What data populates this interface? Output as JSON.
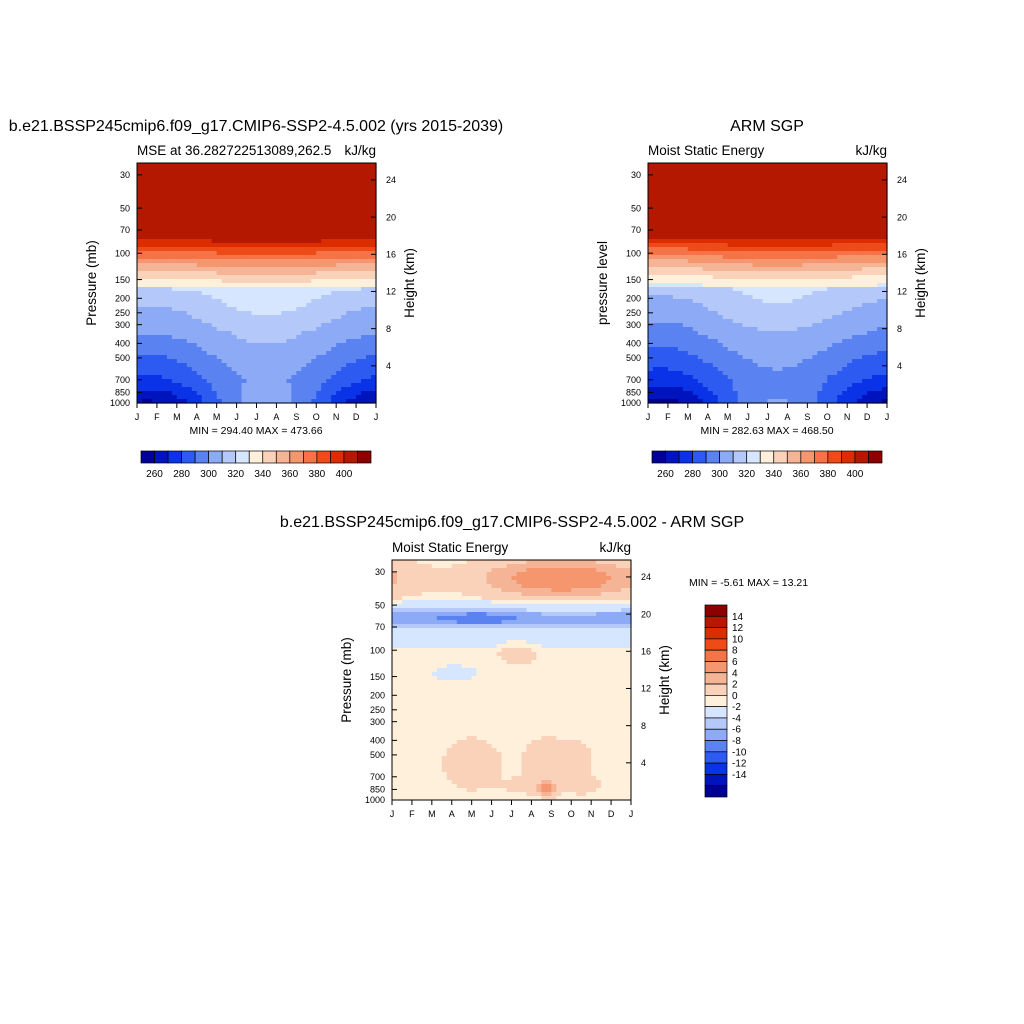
{
  "colors": {
    "mse_levels": [
      "#000096",
      "#0014be",
      "#0a32e6",
      "#2d5af0",
      "#5a82f0",
      "#8caaf5",
      "#b4c8fa",
      "#d7e6ff",
      "#fff0dc",
      "#fad2b9",
      "#f5b496",
      "#f5966e",
      "#f57346",
      "#ee4b19",
      "#dc2d00",
      "#b41900",
      "#8c0000"
    ],
    "diff_levels": [
      "#000096",
      "#0014be",
      "#0a32e6",
      "#2d5af0",
      "#5a82f0",
      "#8caaf5",
      "#b4c8fa",
      "#d7e6ff",
      "#fff0dc",
      "#fad2b9",
      "#f5b496",
      "#f5966e",
      "#f57346",
      "#ee4b19",
      "#dc2d00",
      "#b41900",
      "#8c0000"
    ]
  },
  "chart_data": [
    {
      "type": "heatmap",
      "title": "b.e21.BSSP245cmip6.f09_g17.CMIP6-SSP2-4.5.002 (yrs 2015-2039)",
      "left_subtitle": "MSE at 36.282722513089,262.5",
      "right_subtitle": "kJ/kg",
      "ylabel": "Pressure (mb)",
      "y2label": "Height (km)",
      "x_ticks": [
        "J",
        "F",
        "M",
        "A",
        "M",
        "J",
        "J",
        "A",
        "S",
        "O",
        "N",
        "D",
        "J"
      ],
      "y_ticks": [
        30,
        50,
        70,
        100,
        150,
        200,
        250,
        300,
        400,
        500,
        700,
        850,
        1000
      ],
      "y2_ticks": [
        24,
        20,
        16,
        12,
        8,
        4
      ],
      "stats": "MIN = 294.40 MAX = 473.66",
      "colorbar_levels": [
        255,
        265,
        275,
        285,
        295,
        305,
        315,
        325,
        335,
        345,
        355,
        365,
        375,
        385,
        395,
        405
      ],
      "colorbar_labels": [
        260,
        280,
        300,
        320,
        340,
        360,
        380,
        400
      ]
    },
    {
      "type": "heatmap",
      "title": "ARM SGP",
      "left_subtitle": "Moist Static Energy",
      "right_subtitle": "kJ/kg",
      "ylabel": "pressure level",
      "y2label": "Height (km)",
      "x_ticks": [
        "J",
        "F",
        "M",
        "A",
        "M",
        "J",
        "J",
        "A",
        "S",
        "O",
        "N",
        "D",
        "J"
      ],
      "y_ticks": [
        30,
        50,
        70,
        100,
        150,
        200,
        250,
        300,
        400,
        500,
        700,
        850,
        1000
      ],
      "y2_ticks": [
        24,
        20,
        16,
        12,
        8,
        4
      ],
      "stats": "MIN = 282.63 MAX = 468.50",
      "colorbar_levels": [
        255,
        265,
        275,
        285,
        295,
        305,
        315,
        325,
        335,
        345,
        355,
        365,
        375,
        385,
        395,
        405
      ],
      "colorbar_labels": [
        260,
        280,
        300,
        320,
        340,
        360,
        380,
        400
      ]
    },
    {
      "type": "heatmap",
      "title": "b.e21.BSSP245cmip6.f09_g17.CMIP6-SSP2-4.5.002 - ARM SGP",
      "left_subtitle": "Moist Static Energy",
      "right_subtitle": "kJ/kg",
      "ylabel": "Pressure (mb)",
      "y2label": "Height (km)",
      "x_ticks": [
        "J",
        "F",
        "M",
        "A",
        "M",
        "J",
        "J",
        "A",
        "S",
        "O",
        "N",
        "D",
        "J"
      ],
      "y_ticks": [
        30,
        50,
        70,
        100,
        150,
        200,
        250,
        300,
        400,
        500,
        700,
        850,
        1000
      ],
      "y2_ticks": [
        24,
        20,
        16,
        12,
        8,
        4
      ],
      "stats": "MIN =  -5.61 MAX =  13.21",
      "colorbar_levels": [
        -16,
        -14,
        -12,
        -10,
        -8,
        -6,
        -4,
        -2,
        0,
        2,
        4,
        6,
        8,
        10,
        12,
        14,
        16
      ],
      "colorbar_labels": [
        14,
        12,
        10,
        8,
        6,
        4,
        2,
        0,
        -2,
        -4,
        -6,
        -8,
        -10,
        -12,
        -14
      ]
    }
  ]
}
